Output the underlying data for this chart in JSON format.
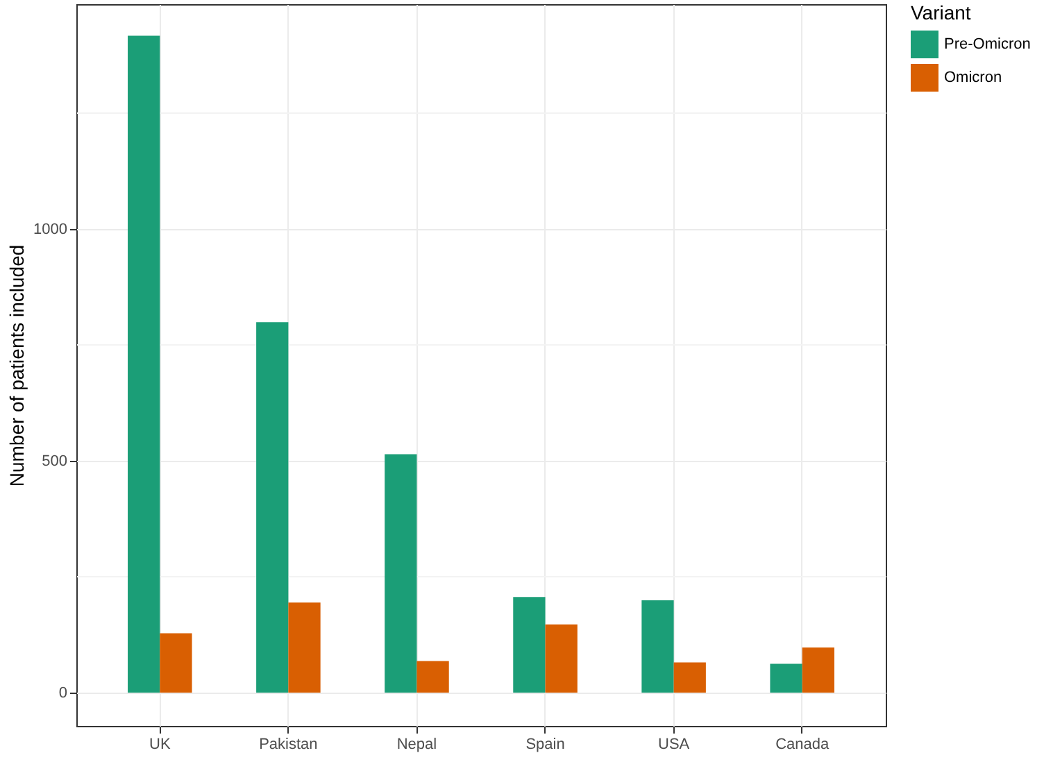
{
  "chart_data": {
    "type": "bar",
    "ylabel": "Number of patients included",
    "legend_title": "Variant",
    "legend": "right",
    "grid": true,
    "categories": [
      "UK",
      "Pakistan",
      "Nepal",
      "Spain",
      "USA",
      "Canada"
    ],
    "series": [
      {
        "name": "Pre-Omicron",
        "color": "#1b9e77",
        "values": [
          1417,
          799,
          514,
          206,
          199,
          62
        ]
      },
      {
        "name": "Omicron",
        "color": "#d95f02",
        "values": [
          128,
          194,
          68,
          147,
          65,
          97
        ]
      }
    ],
    "ylim": [
      -72,
      1485
    ],
    "yticks": [
      0,
      500,
      1000
    ]
  }
}
